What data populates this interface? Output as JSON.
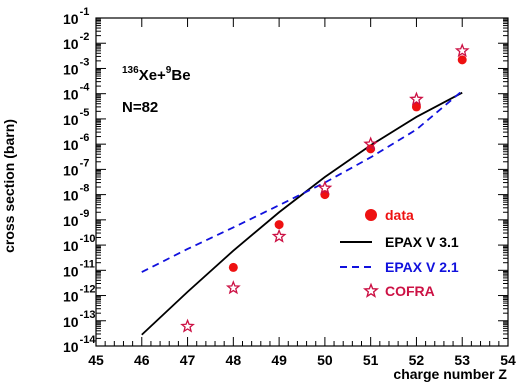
{
  "chart_data": {
    "type": "scatter",
    "xlabel": "charge number Z",
    "ylabel": "cross section (barn)",
    "xlim": [
      45,
      54
    ],
    "ylim_exp": [
      -14,
      -1
    ],
    "y_scale": "log",
    "x_ticks": [
      "45",
      "46",
      "47",
      "48",
      "49",
      "50",
      "51",
      "52",
      "53",
      "54"
    ],
    "y_ticks": [
      {
        "base": "10",
        "exp": "-1"
      },
      {
        "base": "10",
        "exp": "-2"
      },
      {
        "base": "10",
        "exp": "-3"
      },
      {
        "base": "10",
        "exp": "-4"
      },
      {
        "base": "10",
        "exp": "-5"
      },
      {
        "base": "10",
        "exp": "-6"
      },
      {
        "base": "10",
        "exp": "-7"
      },
      {
        "base": "10",
        "exp": "-8"
      },
      {
        "base": "10",
        "exp": "-9"
      },
      {
        "base": "10",
        "exp": "-10"
      },
      {
        "base": "10",
        "exp": "-11"
      },
      {
        "base": "10",
        "exp": "-12"
      },
      {
        "base": "10",
        "exp": "-13"
      },
      {
        "base": "10",
        "exp": "-14"
      }
    ],
    "annotations": {
      "reaction_mass": "136",
      "reaction_part1": "Xe+",
      "reaction_mass2": "9",
      "reaction_part2": "Be",
      "neutron_number": "N=82"
    },
    "legend_placement": "bottom-right",
    "series": [
      {
        "name": "data",
        "marker": "filled-circle",
        "color": "#ee1111",
        "points": [
          {
            "x": 48,
            "y": 1.3e-11
          },
          {
            "x": 49,
            "y": 6.5e-10
          },
          {
            "x": 50,
            "y": 1e-08
          },
          {
            "x": 51,
            "y": 6.5e-07
          },
          {
            "x": 52,
            "y": 3e-05
          },
          {
            "x": 53,
            "y": 0.0022
          }
        ]
      },
      {
        "name": "EPAX V 3.1",
        "style": "solid",
        "color": "#000000",
        "points": [
          {
            "x": 46,
            "y": 2.8e-14
          },
          {
            "x": 47,
            "y": 1.4e-12
          },
          {
            "x": 48,
            "y": 6e-11
          },
          {
            "x": 49,
            "y": 2e-09
          },
          {
            "x": 50,
            "y": 5e-08
          },
          {
            "x": 51,
            "y": 9e-07
          },
          {
            "x": 52,
            "y": 1.2e-05
          },
          {
            "x": 53,
            "y": 0.00011
          }
        ]
      },
      {
        "name": "EPAX V 2.1",
        "style": "dashed",
        "color": "#1111dd",
        "points": [
          {
            "x": 46,
            "y": 8.5e-12
          },
          {
            "x": 47,
            "y": 7e-11
          },
          {
            "x": 48,
            "y": 5e-10
          },
          {
            "x": 49,
            "y": 3.8e-09
          },
          {
            "x": 50,
            "y": 3e-08
          },
          {
            "x": 51,
            "y": 3e-07
          },
          {
            "x": 52,
            "y": 3.8e-06
          },
          {
            "x": 53,
            "y": 0.00013
          }
        ]
      },
      {
        "name": "COFRA",
        "marker": "open-star",
        "color": "#cc1144",
        "points": [
          {
            "x": 47,
            "y": 6e-14
          },
          {
            "x": 48,
            "y": 2e-12
          },
          {
            "x": 49,
            "y": 2.2e-10
          },
          {
            "x": 50,
            "y": 1.8e-08
          },
          {
            "x": 51,
            "y": 1e-06
          },
          {
            "x": 52,
            "y": 6e-05
          },
          {
            "x": 53,
            "y": 0.005
          }
        ]
      }
    ]
  }
}
